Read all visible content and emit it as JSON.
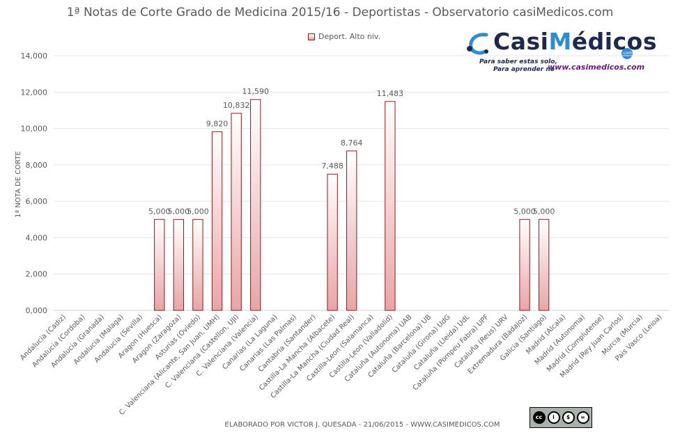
{
  "chart_data": {
    "type": "bar",
    "title": "1ª Notas de Corte Grado de Medicina 2015/16 - Deportistas - Observatorio casiMedicos.com",
    "ylabel": "1ª NOTA DE CORTE",
    "xlabel": "",
    "ylim": [
      0,
      14
    ],
    "yticks": [
      "0,000",
      "2,000",
      "4,000",
      "6,000",
      "8,000",
      "10,000",
      "12,000",
      "14,000"
    ],
    "ytick_values": [
      0,
      2,
      4,
      6,
      8,
      10,
      12,
      14
    ],
    "grid": true,
    "legend_position": "top-center",
    "categories": [
      "Andalucia (Cadiz)",
      "Andalucia (Cordoba)",
      "Andalucia (Granada)",
      "Andalucia (Malaga)",
      "Andalucia (Sevilla)",
      "Aragon (Huesca)",
      "Aragon (Zaragoza)",
      "Asturias (Oviedo)",
      "C. Valenciana (Alicante, San Juan, UMH)",
      "C. Valenciana (Castellon, UJI)",
      "C. Valenciana (Valencia)",
      "Canarias (La Laguna)",
      "Canarias (Las Palmas)",
      "Cantabria (Santander)",
      "Castilla-La Mancha (Albacete)",
      "Castilla-La Mancha (Ciudad Real)",
      "Castilla-Leon (Salamanca)",
      "Castilla-Leon (Valladolid)",
      "Cataluña (Autonoma) UAB",
      "Cataluña (Barcelona) UB",
      "Cataluña (Girona) UdG",
      "Cataluña (Lleida) UdL",
      "Cataluña (Pompeu Fabra) UPF",
      "Cataluña (Reus) URV",
      "Extremadura (Badajoz)",
      "Galicia (Santiago)",
      "Madrid (Alcala)",
      "Madrid (Autonoma)",
      "Madrid (Complutense)",
      "Madrid (Rey Juan Carlos)",
      "Murcia (Murcia)",
      "Pais Vasco (Leioa)"
    ],
    "series": [
      {
        "name": "Deport. Alto niv.",
        "values": [
          null,
          null,
          null,
          null,
          null,
          5.0,
          5.0,
          5.0,
          9.82,
          10.832,
          11.59,
          null,
          null,
          null,
          7.488,
          8.764,
          null,
          11.483,
          null,
          null,
          null,
          null,
          null,
          null,
          5.0,
          5.0,
          null,
          null,
          null,
          null,
          null,
          null
        ],
        "labels": [
          null,
          null,
          null,
          null,
          null,
          "5,000",
          "5,000",
          "5,000",
          "9,820",
          "10,832",
          "11,590",
          null,
          null,
          null,
          "7,488",
          "8,764",
          null,
          "11,483",
          null,
          null,
          null,
          null,
          null,
          null,
          "5,000",
          "5,000",
          null,
          null,
          null,
          null,
          null,
          null
        ]
      }
    ],
    "colors": {
      "bar_fill_top": "#ffffff",
      "bar_fill_bottom": "#e9a5a5",
      "bar_border": "#8b1a1a",
      "grid": "#e4e4e4",
      "text": "#595959"
    }
  },
  "logo": {
    "name_left": "Casi",
    "name_right": "édicos",
    "badge": ".com",
    "tagline_1": "Para saber estas solo,",
    "tagline_2": "Para aprender no",
    "url": "www.casimedicos.com"
  },
  "footer": "ELABORADO POR VICTOR J. QUESADA - 21/06/2015 - WWW.CASIMEDICOS.COM",
  "license": {
    "icons": [
      "cc-icon",
      "by-icon",
      "nc-icon",
      "nd-icon"
    ],
    "labels": [
      "BY",
      "NC",
      "ND"
    ]
  }
}
